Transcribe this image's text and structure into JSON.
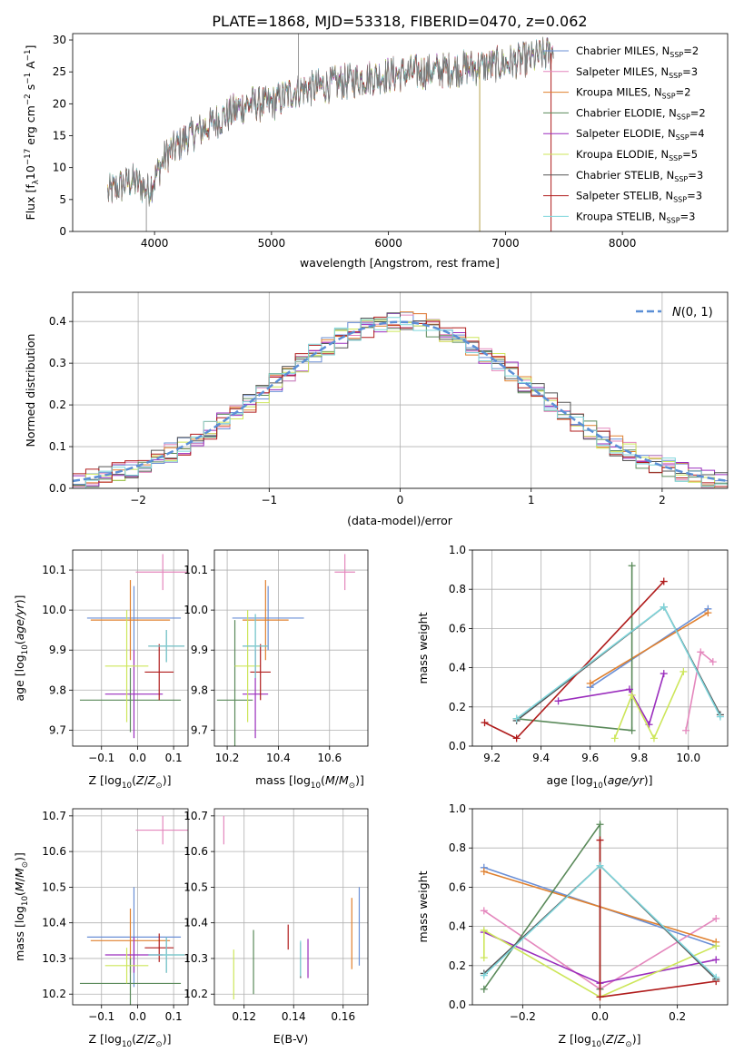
{
  "title": "PLATE=1868, MJD=53318, FIBERID=0470, z=0.062",
  "colors": {
    "Chabrier MILES": "#6a8fd6",
    "Salpeter MILES": "#e487bd",
    "Kroupa MILES": "#e0802e",
    "Chabrier ELODIE": "#5a8a5a",
    "Salpeter ELODIE": "#9a2dbd",
    "Kroupa ELODIE": "#cde65a",
    "Chabrier STELIB": "#555555",
    "Salpeter STELIB": "#b01c1c",
    "Kroupa STELIB": "#7fd6dc"
  },
  "chart_data": [
    {
      "type": "line",
      "panel": "spectrum",
      "xlabel": "wavelength [Angstrom, rest frame]",
      "ylabel": "Flux [f",
      "ylabel_parts": [
        "Flux [f",
        "λ",
        "10",
        "−17",
        " erg cm",
        "−2",
        " s",
        "−1",
        " A",
        "−1",
        "]"
      ],
      "xlim": [
        3300,
        8900
      ],
      "ylim": [
        0,
        31
      ],
      "xticks": [
        "4000",
        "5000",
        "6000",
        "7000",
        "8000"
      ],
      "yticks": [
        "0",
        "5",
        "10",
        "15",
        "20",
        "25",
        "30"
      ],
      "legend": "upper right",
      "legend_entries": [
        {
          "name": "Chabrier MILES",
          "n": "2"
        },
        {
          "name": "Salpeter MILES",
          "n": "3"
        },
        {
          "name": "Kroupa MILES",
          "n": "2"
        },
        {
          "name": "Chabrier ELODIE",
          "n": "2"
        },
        {
          "name": "Salpeter ELODIE",
          "n": "4"
        },
        {
          "name": "Kroupa ELODIE",
          "n": "5"
        },
        {
          "name": "Chabrier STELIB",
          "n": "3"
        },
        {
          "name": "Salpeter STELIB",
          "n": "3"
        },
        {
          "name": "Kroupa STELIB",
          "n": "3"
        }
      ],
      "continuum": {
        "x": [
          3600,
          3800,
          3950,
          4100,
          4300,
          4500,
          4800,
          5000,
          5200,
          5500,
          5800,
          6000,
          6300,
          6600,
          6900,
          7200,
          7400
        ],
        "y": [
          6,
          8,
          6.5,
          12,
          15,
          17,
          20,
          20,
          22,
          23,
          24,
          24.5,
          25,
          25.5,
          26,
          27,
          28
        ]
      },
      "features": {
        "x": [
          3930,
          5230,
          6780,
          7390
        ],
        "label": [
          "",
          "",
          "",
          ""
        ]
      }
    },
    {
      "type": "step",
      "panel": "residuals",
      "xlabel": "(data-model)/error",
      "ylabel": "Normed distribution",
      "xlim": [
        -2.5,
        2.5
      ],
      "ylim": [
        0,
        0.47
      ],
      "xticks": [
        "−2",
        "−1",
        "0",
        "1",
        "2"
      ],
      "yticks": [
        "0.0",
        "0.1",
        "0.2",
        "0.3",
        "0.4"
      ],
      "legend": "upper right",
      "legend_label": "N(0, 1)"
    },
    {
      "type": "scatter",
      "panel": "Z-age",
      "xlabel": "Z [log10(Z/Z⊙)]",
      "ylabel": "age  [log10(age/yr)]",
      "xlim": [
        -0.18,
        0.14
      ],
      "ylim": [
        9.66,
        10.15
      ],
      "xticks": [
        "−0.1",
        "0.0",
        "0.1"
      ],
      "yticks": [
        "9.7",
        "9.8",
        "9.9",
        "10.0",
        "10.1"
      ],
      "series": [
        {
          "name": "Chabrier MILES",
          "x": -0.01,
          "y": 9.98,
          "xe": 0.13,
          "ye": 0.08
        },
        {
          "name": "Salpeter MILES",
          "x": 0.07,
          "y": 10.095,
          "xe": 0.075,
          "ye": 0.045
        },
        {
          "name": "Kroupa MILES",
          "x": -0.02,
          "y": 9.975,
          "xe": 0.11,
          "ye": 0.1
        },
        {
          "name": "Chabrier ELODIE",
          "x": -0.02,
          "y": 9.775,
          "xe": 0.14,
          "ye": 0.08
        },
        {
          "name": "Salpeter ELODIE",
          "x": -0.01,
          "y": 9.79,
          "xe": 0.08,
          "ye": 0.11
        },
        {
          "name": "Kroupa ELODIE",
          "x": -0.03,
          "y": 9.86,
          "xe": 0.06,
          "ye": 0.14
        },
        {
          "name": "Chabrier STELIB",
          "x": 0.08,
          "y": 9.91,
          "xe": 0.05,
          "ye": 0.04
        },
        {
          "name": "Salpeter STELIB",
          "x": 0.06,
          "y": 9.845,
          "xe": 0.04,
          "ye": 0.07
        },
        {
          "name": "Kroupa STELIB",
          "x": 0.08,
          "y": 9.91,
          "xe": 0.05,
          "ye": 0.04
        }
      ]
    },
    {
      "type": "scatter",
      "panel": "mass-age",
      "xlabel": "mass [log10(M/M⊙)]",
      "xlim": [
        10.15,
        10.75
      ],
      "ylim": [
        9.66,
        10.15
      ],
      "xticks": [
        "10.2",
        "10.4",
        "10.6"
      ],
      "yticks": [
        "9.7",
        "9.8",
        "9.9",
        "10.0",
        "10.1"
      ],
      "series": [
        {
          "name": "Chabrier MILES",
          "x": 10.36,
          "y": 9.98,
          "xe": 0.14,
          "ye": 0.08
        },
        {
          "name": "Salpeter MILES",
          "x": 10.66,
          "y": 10.095,
          "xe": 0.04,
          "ye": 0.045
        },
        {
          "name": "Kroupa MILES",
          "x": 10.35,
          "y": 9.975,
          "xe": 0.09,
          "ye": 0.1
        },
        {
          "name": "Chabrier ELODIE",
          "x": 10.23,
          "y": 9.775,
          "xe": 0.07,
          "ye": 0.2
        },
        {
          "name": "Salpeter ELODIE",
          "x": 10.31,
          "y": 9.79,
          "xe": 0.05,
          "ye": 0.11
        },
        {
          "name": "Kroupa ELODIE",
          "x": 10.28,
          "y": 9.86,
          "xe": 0.05,
          "ye": 0.14
        },
        {
          "name": "Chabrier STELIB",
          "x": 10.31,
          "y": 9.91,
          "xe": 0.05,
          "ye": 0.08
        },
        {
          "name": "Salpeter STELIB",
          "x": 10.33,
          "y": 9.845,
          "xe": 0.04,
          "ye": 0.07
        },
        {
          "name": "Kroupa STELIB",
          "x": 10.31,
          "y": 9.91,
          "xe": 0.05,
          "ye": 0.08
        }
      ]
    },
    {
      "type": "line",
      "panel": "age-weight",
      "xlabel": "age  [log10(age/yr)]",
      "ylabel": "mass weight",
      "xlim": [
        9.12,
        10.16
      ],
      "ylim": [
        0,
        1.0
      ],
      "xticks": [
        "9.2",
        "9.4",
        "9.6",
        "9.8",
        "10.0"
      ],
      "yticks": [
        "0.0",
        "0.2",
        "0.4",
        "0.6",
        "0.8",
        "1.0"
      ],
      "series": [
        {
          "name": "Chabrier MILES",
          "x": [
            9.6,
            10.08
          ],
          "y": [
            0.3,
            0.7
          ]
        },
        {
          "name": "Salpeter MILES",
          "x": [
            9.99,
            10.05,
            10.1
          ],
          "y": [
            0.08,
            0.48,
            0.43
          ]
        },
        {
          "name": "Kroupa MILES",
          "x": [
            9.6,
            10.08
          ],
          "y": [
            0.32,
            0.68
          ]
        },
        {
          "name": "Chabrier ELODIE",
          "x": [
            9.3,
            9.77,
            9.77
          ],
          "y": [
            0.14,
            0.08,
            0.92
          ]
        },
        {
          "name": "Salpeter ELODIE",
          "x": [
            9.47,
            9.76,
            9.84,
            9.9
          ],
          "y": [
            0.23,
            0.29,
            0.11,
            0.37
          ]
        },
        {
          "name": "Kroupa ELODIE",
          "x": [
            9.7,
            9.77,
            9.86,
            9.98
          ],
          "y": [
            0.04,
            0.26,
            0.04,
            0.38
          ]
        },
        {
          "name": "Chabrier STELIB",
          "x": [
            9.3,
            9.9,
            10.13
          ],
          "y": [
            0.13,
            0.71,
            0.16
          ]
        },
        {
          "name": "Salpeter STELIB",
          "x": [
            9.17,
            9.3,
            9.9
          ],
          "y": [
            0.12,
            0.04,
            0.84
          ]
        },
        {
          "name": "Kroupa STELIB",
          "x": [
            9.3,
            9.9,
            10.13
          ],
          "y": [
            0.14,
            0.71,
            0.15
          ]
        }
      ]
    },
    {
      "type": "scatter",
      "panel": "Z-mass",
      "xlabel": "Z [log10(Z/Z⊙)]",
      "ylabel": "mass [log10(M/M⊙)]",
      "xlim": [
        -0.18,
        0.14
      ],
      "ylim": [
        10.17,
        10.72
      ],
      "xticks": [
        "−0.1",
        "0.0",
        "0.1"
      ],
      "yticks": [
        "10.2",
        "10.3",
        "10.4",
        "10.5",
        "10.6",
        "10.7"
      ],
      "series": [
        {
          "name": "Chabrier MILES",
          "x": -0.01,
          "y": 10.36,
          "xe": 0.13,
          "ye": 0.14
        },
        {
          "name": "Salpeter MILES",
          "x": 0.07,
          "y": 10.66,
          "xe": 0.075,
          "ye": 0.04
        },
        {
          "name": "Kroupa MILES",
          "x": -0.02,
          "y": 10.35,
          "xe": 0.11,
          "ye": 0.09
        },
        {
          "name": "Chabrier ELODIE",
          "x": -0.02,
          "y": 10.23,
          "xe": 0.14,
          "ye": 0.07
        },
        {
          "name": "Salpeter ELODIE",
          "x": -0.01,
          "y": 10.31,
          "xe": 0.08,
          "ye": 0.05
        },
        {
          "name": "Kroupa ELODIE",
          "x": -0.03,
          "y": 10.28,
          "xe": 0.06,
          "ye": 0.05
        },
        {
          "name": "Chabrier STELIB",
          "x": 0.08,
          "y": 10.31,
          "xe": 0.05,
          "ye": 0.05
        },
        {
          "name": "Salpeter STELIB",
          "x": 0.06,
          "y": 10.33,
          "xe": 0.04,
          "ye": 0.04
        },
        {
          "name": "Kroupa STELIB",
          "x": 0.08,
          "y": 10.31,
          "xe": 0.05,
          "ye": 0.05
        }
      ]
    },
    {
      "type": "scatter",
      "panel": "EBV-mass",
      "xlabel": "E(B-V)",
      "xlim": [
        0.108,
        0.17
      ],
      "ylim": [
        10.17,
        10.72
      ],
      "xticks": [
        "0.12",
        "0.14",
        "0.16"
      ],
      "yticks": [
        "10.2",
        "10.3",
        "10.4",
        "10.5",
        "10.6",
        "10.7"
      ],
      "series": [
        {
          "name": "Chabrier MILES",
          "x": 0.1665,
          "y": 10.39,
          "ye": 0.11
        },
        {
          "name": "Salpeter MILES",
          "x": 0.1118,
          "y": 10.66,
          "ye": 0.04
        },
        {
          "name": "Kroupa MILES",
          "x": 0.1635,
          "y": 10.37,
          "ye": 0.1
        },
        {
          "name": "Chabrier ELODIE",
          "x": 0.1238,
          "y": 10.29,
          "ye": 0.09
        },
        {
          "name": "Salpeter ELODIE",
          "x": 0.1458,
          "y": 10.3,
          "ye": 0.055
        },
        {
          "name": "Kroupa ELODIE",
          "x": 0.1158,
          "y": 10.255,
          "ye": 0.07
        },
        {
          "name": "Chabrier STELIB",
          "x": 0.1428,
          "y": 10.295,
          "ye": 0.05
        },
        {
          "name": "Salpeter STELIB",
          "x": 0.1378,
          "y": 10.36,
          "ye": 0.035
        },
        {
          "name": "Kroupa STELIB",
          "x": 0.1428,
          "y": 10.3,
          "ye": 0.05
        }
      ]
    },
    {
      "type": "line",
      "panel": "Z-weight",
      "xlabel": "Z [log10(Z/Z⊙)]",
      "ylabel": "mass weight",
      "xlim": [
        -0.33,
        0.33
      ],
      "ylim": [
        0,
        1.0
      ],
      "xticks": [
        "−0.2",
        "0.0",
        "0.2"
      ],
      "yticks": [
        "0.0",
        "0.2",
        "0.4",
        "0.6",
        "0.8",
        "1.0"
      ],
      "series": [
        {
          "name": "Chabrier MILES",
          "x": [
            -0.3,
            0.3
          ],
          "y": [
            0.7,
            0.3
          ]
        },
        {
          "name": "Salpeter MILES",
          "x": [
            -0.3,
            0.0,
            0.3
          ],
          "y": [
            0.48,
            0.08,
            0.44
          ]
        },
        {
          "name": "Kroupa MILES",
          "x": [
            -0.3,
            0.3
          ],
          "y": [
            0.68,
            0.32
          ]
        },
        {
          "name": "Chabrier ELODIE",
          "x": [
            -0.3,
            0.0,
            0.0
          ],
          "y": [
            0.08,
            0.92,
            0.08
          ]
        },
        {
          "name": "Salpeter ELODIE",
          "x": [
            -0.3,
            0.0,
            0.3
          ],
          "y": [
            0.37,
            0.11,
            0.23
          ]
        },
        {
          "name": "Kroupa ELODIE",
          "x": [
            -0.3,
            -0.3,
            0.0,
            0.3
          ],
          "y": [
            0.24,
            0.38,
            0.04,
            0.3
          ]
        },
        {
          "name": "Chabrier STELIB",
          "x": [
            -0.3,
            0.0,
            0.3
          ],
          "y": [
            0.16,
            0.71,
            0.13
          ]
        },
        {
          "name": "Salpeter STELIB",
          "x": [
            0.0,
            0.0,
            0.3
          ],
          "y": [
            0.84,
            0.04,
            0.12
          ]
        },
        {
          "name": "Kroupa STELIB",
          "x": [
            -0.3,
            0.0,
            0.3
          ],
          "y": [
            0.15,
            0.71,
            0.14
          ]
        }
      ]
    }
  ]
}
